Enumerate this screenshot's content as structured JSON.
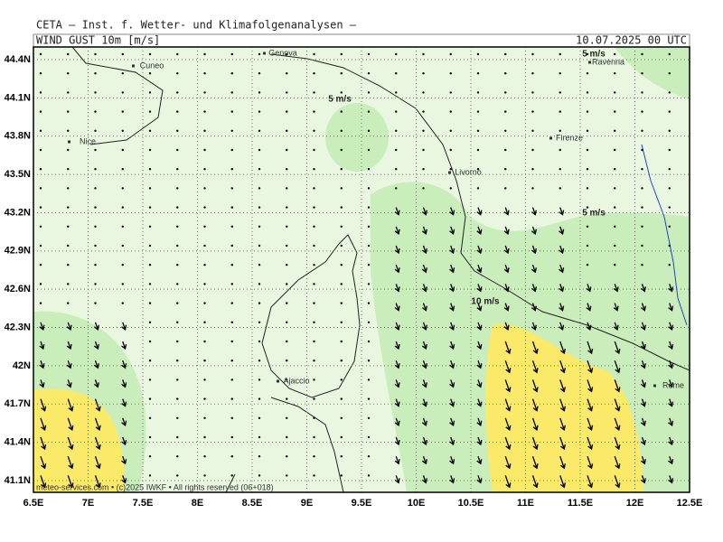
{
  "header": {
    "title": "CETA – Inst. f. Wetter- und Klimafolgenanalysen –",
    "panel": "WIND GUST 10m [m/s]",
    "date": "10.07.2025 00 UTC"
  },
  "map": {
    "lon_labels": [
      "6.5E",
      "7E",
      "7.5E",
      "8E",
      "8.5E",
      "9E",
      "9.5E",
      "10E",
      "10.5E",
      "11E",
      "11.5E",
      "12E",
      "12.5E"
    ],
    "lat_labels": [
      "44.4N",
      "44.1N",
      "43.8N",
      "43.5N",
      "43.2N",
      "42.9N",
      "42.6N",
      "42.3N",
      "42N",
      "41.7N",
      "41.4N",
      "41.1N"
    ],
    "places": [
      "Genova",
      "Cuneo",
      "Ravenna",
      "Nice",
      "Firenze",
      "Livorno",
      "Ajaccio",
      "Rome"
    ],
    "contour_labels": [
      "5 m/s",
      "5 m/s",
      "5 m/s",
      "10 m/s"
    ],
    "credit": "meteo-services.com • (c)2025 IWKF • All rights reserved (06+018)"
  }
}
